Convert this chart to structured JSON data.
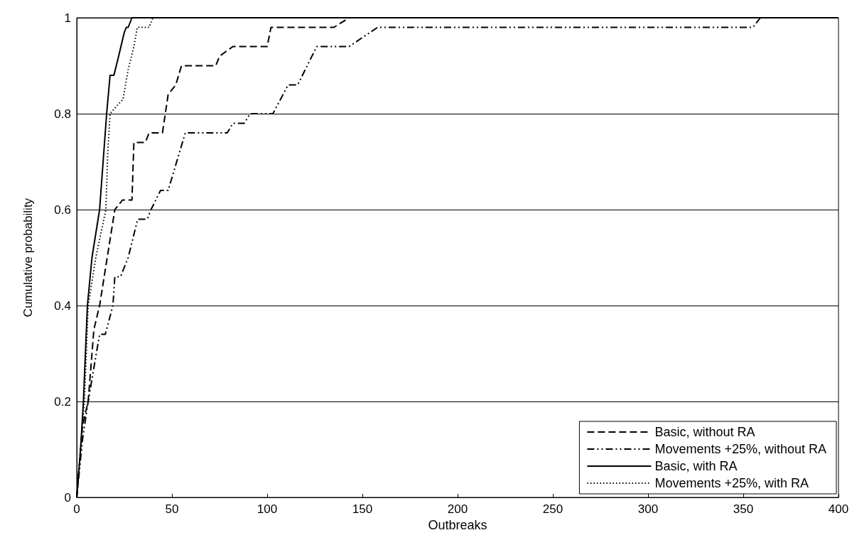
{
  "chart_data": {
    "type": "line",
    "xlabel": "Outbreaks",
    "ylabel": "Cumulative probability",
    "xlim": [
      0,
      400
    ],
    "xticks": [
      0,
      50,
      100,
      150,
      200,
      250,
      300,
      350,
      400
    ],
    "ylim": [
      0,
      1
    ],
    "yticks": [
      0,
      0.2,
      0.4,
      0.6,
      0.8,
      1
    ],
    "grid": "y",
    "legend": "bottom right",
    "marker": "none",
    "series": [
      {
        "name": "Basic, without RA",
        "color": "#000000",
        "line_style": "dashed",
        "x": [
          0,
          3,
          6,
          9,
          12,
          16,
          20,
          24,
          29,
          30,
          36,
          38,
          45,
          48,
          52,
          55,
          73,
          75,
          82,
          100,
          102,
          135,
          143,
          400
        ],
        "values": [
          0,
          0.15,
          0.2,
          0.35,
          0.4,
          0.5,
          0.6,
          0.62,
          0.62,
          0.74,
          0.74,
          0.76,
          0.76,
          0.84,
          0.86,
          0.9,
          0.9,
          0.92,
          0.94,
          0.94,
          0.98,
          0.98,
          1,
          1
        ]
      },
      {
        "name": "Movements +25%, without RA",
        "color": "#000000",
        "line_style": "dashdot",
        "x": [
          0,
          3,
          6,
          12,
          15,
          19,
          20,
          23,
          27,
          32,
          37,
          39,
          44,
          48,
          57,
          79,
          82,
          88,
          91,
          103,
          111,
          116,
          126,
          143,
          158,
          355,
          359,
          400
        ],
        "values": [
          0,
          0.12,
          0.2,
          0.34,
          0.34,
          0.4,
          0.46,
          0.46,
          0.5,
          0.58,
          0.58,
          0.6,
          0.64,
          0.64,
          0.76,
          0.76,
          0.78,
          0.78,
          0.8,
          0.8,
          0.86,
          0.86,
          0.94,
          0.94,
          0.98,
          0.98,
          1,
          1
        ]
      },
      {
        "name": "Basic, with RA",
        "color": "#000000",
        "line_style": "solid",
        "x": [
          0,
          2,
          3.5,
          5.6,
          8,
          12,
          15.7,
          17.5,
          19.5,
          22,
          25,
          26,
          27,
          29,
          400
        ],
        "values": [
          0,
          0.1,
          0.2,
          0.4,
          0.5,
          0.6,
          0.8,
          0.88,
          0.88,
          0.92,
          0.97,
          0.98,
          0.98,
          1,
          1
        ]
      },
      {
        "name": "Movements +25%, with RA",
        "color": "#000000",
        "line_style": "dotted",
        "x": [
          0,
          2,
          4,
          6,
          10,
          15.3,
          16.3,
          17.5,
          21.9,
          24.3,
          26.9,
          30,
          31.8,
          38,
          40,
          400
        ],
        "values": [
          0,
          0.1,
          0.2,
          0.4,
          0.5,
          0.6,
          0.72,
          0.8,
          0.82,
          0.83,
          0.89,
          0.94,
          0.98,
          0.98,
          1,
          1
        ]
      }
    ]
  }
}
